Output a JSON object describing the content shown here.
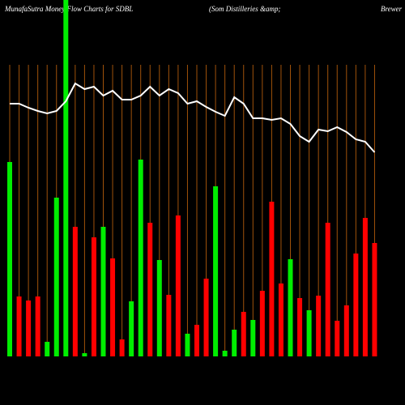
{
  "chart_data": {
    "type": "bar",
    "title": "MunafaSutra  Money  Flow  Charts for SDBL",
    "subtitle": "(Som Distilleries &amp;",
    "subtitle_right": "Brewer",
    "ylim": [
      0,
      440
    ],
    "values": [
      240,
      74,
      69,
      74,
      18,
      196,
      440,
      160,
      4,
      147,
      160,
      121,
      21,
      68,
      243,
      165,
      119,
      76,
      174,
      28,
      39,
      96,
      210,
      7,
      33,
      55,
      45,
      81,
      191,
      90,
      120,
      72,
      57,
      75,
      165,
      44,
      63,
      127,
      171,
      140
    ],
    "bar_colors": [
      "#00ee00",
      "#ff0000",
      "#ff0000",
      "#ff0000",
      "#00ee00",
      "#00ee00",
      "#00ee00",
      "#ff0000",
      "#00ee00",
      "#ff0000",
      "#00ee00",
      "#ff0000",
      "#ff0000",
      "#00ee00",
      "#00ee00",
      "#ff0000",
      "#00ee00",
      "#ff0000",
      "#ff0000",
      "#00ee00",
      "#ff0000",
      "#ff0000",
      "#00ee00",
      "#00ee00",
      "#00ee00",
      "#ff0000",
      "#00ee00",
      "#ff0000",
      "#ff0000",
      "#ff0000",
      "#00ee00",
      "#ff0000",
      "#00ee00",
      "#ff0000",
      "#ff0000",
      "#ff0000",
      "#ff0000",
      "#ff0000",
      "#ff0000",
      "#ff0000"
    ],
    "line": {
      "color": "#ffffff",
      "values": [
        312,
        312,
        307,
        303,
        300,
        303,
        315,
        337,
        330,
        333,
        322,
        328,
        317,
        317,
        322,
        333,
        322,
        330,
        325,
        312,
        315,
        308,
        302,
        297,
        320,
        312,
        294,
        294,
        292,
        294,
        287,
        272,
        265,
        280,
        278,
        283,
        277,
        268,
        265,
        252
      ]
    },
    "guide_color": "#a0520a"
  }
}
